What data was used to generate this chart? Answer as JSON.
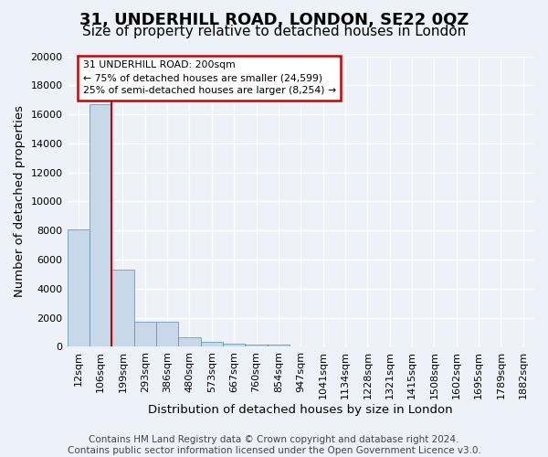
{
  "title": "31, UNDERHILL ROAD, LONDON, SE22 0QZ",
  "subtitle": "Size of property relative to detached houses in London",
  "xlabel": "Distribution of detached houses by size in London",
  "ylabel": "Number of detached properties",
  "footer_line1": "Contains HM Land Registry data © Crown copyright and database right 2024.",
  "footer_line2": "Contains public sector information licensed under the Open Government Licence v3.0.",
  "bin_labels": [
    "12sqm",
    "106sqm",
    "199sqm",
    "293sqm",
    "386sqm",
    "480sqm",
    "573sqm",
    "667sqm",
    "760sqm",
    "854sqm",
    "947sqm",
    "1041sqm",
    "1134sqm",
    "1228sqm",
    "1321sqm",
    "1415sqm",
    "1508sqm",
    "1602sqm",
    "1695sqm",
    "1789sqm",
    "1882sqm"
  ],
  "bar_values": [
    8100,
    16700,
    5300,
    1750,
    1750,
    650,
    330,
    200,
    150,
    130,
    0,
    0,
    0,
    0,
    0,
    0,
    0,
    0,
    0,
    0,
    0
  ],
  "bar_color": "#c8d8e8",
  "bar_edge_color": "#5a8aaa",
  "property_line_index": 2,
  "annotation_text": "31 UNDERHILL ROAD: 200sqm\n← 75% of detached houses are smaller (24,599)\n25% of semi-detached houses are larger (8,254) →",
  "annotation_box_color": "#ffffff",
  "annotation_border_color": "#cc0000",
  "line_color": "#cc0000",
  "ylim": [
    0,
    20000
  ],
  "yticks": [
    0,
    2000,
    4000,
    6000,
    8000,
    10000,
    12000,
    14000,
    16000,
    18000,
    20000
  ],
  "bg_color": "#edf2f8",
  "plot_bg_color": "#edf2f8",
  "grid_color": "#ffffff",
  "title_fontsize": 13,
  "subtitle_fontsize": 11,
  "axis_label_fontsize": 9.5,
  "tick_fontsize": 8,
  "footer_fontsize": 7.5
}
